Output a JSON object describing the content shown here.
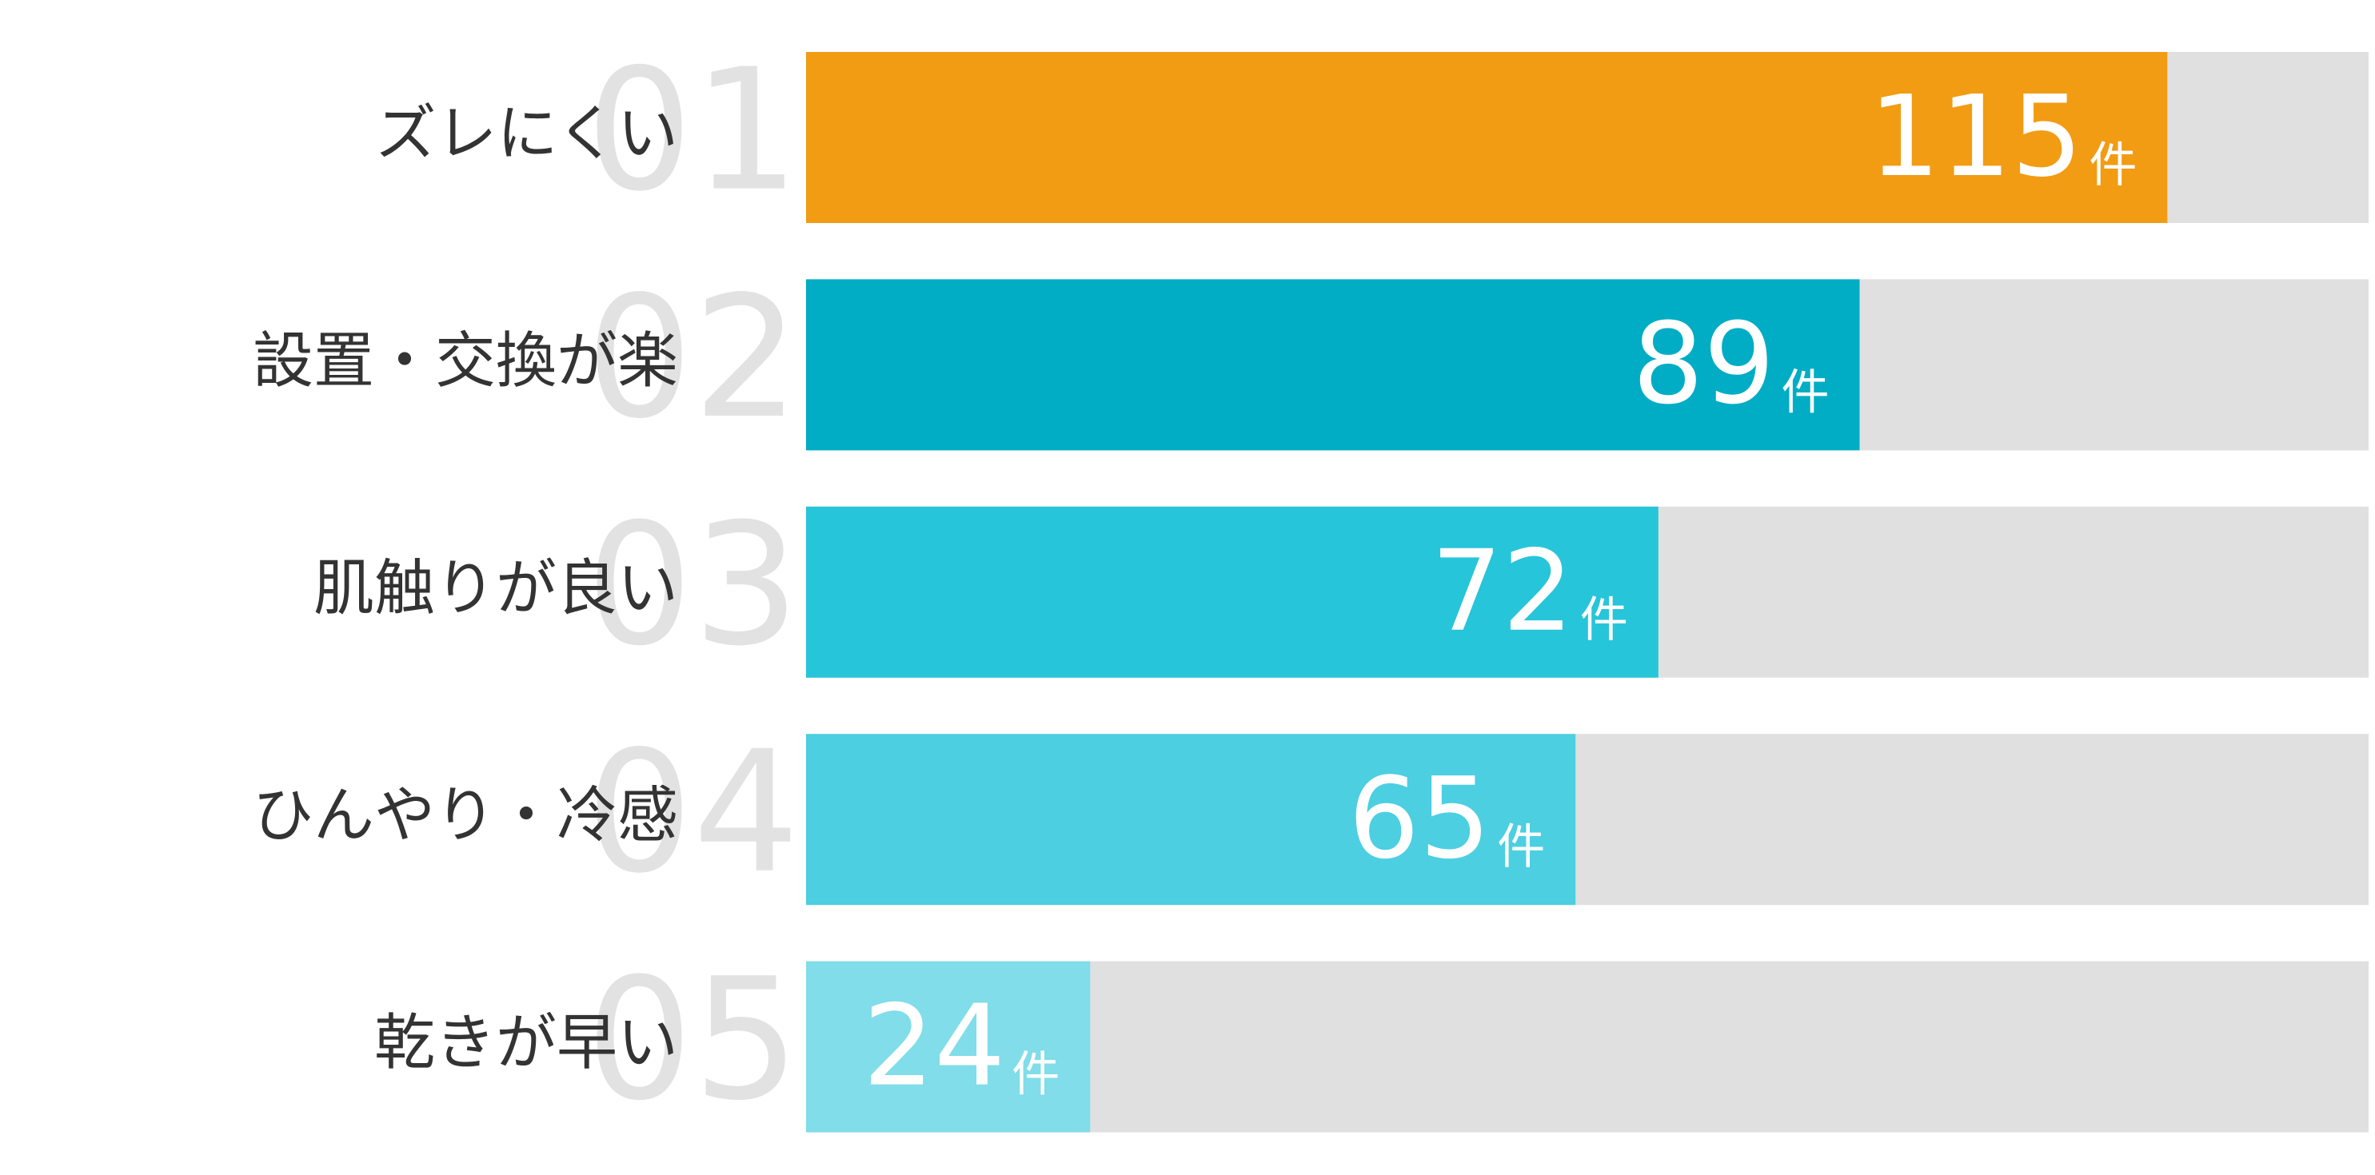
{
  "chart_data": {
    "type": "bar",
    "ranks": [
      "01",
      "02",
      "03",
      "04",
      "05"
    ],
    "categories": [
      "ズレにくい",
      "設置・交換が楽",
      "肌触りが良い",
      "ひんやり・冷感",
      "乾きが早い"
    ],
    "values": [
      115,
      89,
      72,
      65,
      24
    ],
    "unit": "件",
    "colors": [
      "#f29c13",
      "#00adc4",
      "#27c5d9",
      "#4ccfe1",
      "#80dde9"
    ],
    "track_color": "#e0e0e0",
    "xlim": [
      0,
      132
    ]
  }
}
